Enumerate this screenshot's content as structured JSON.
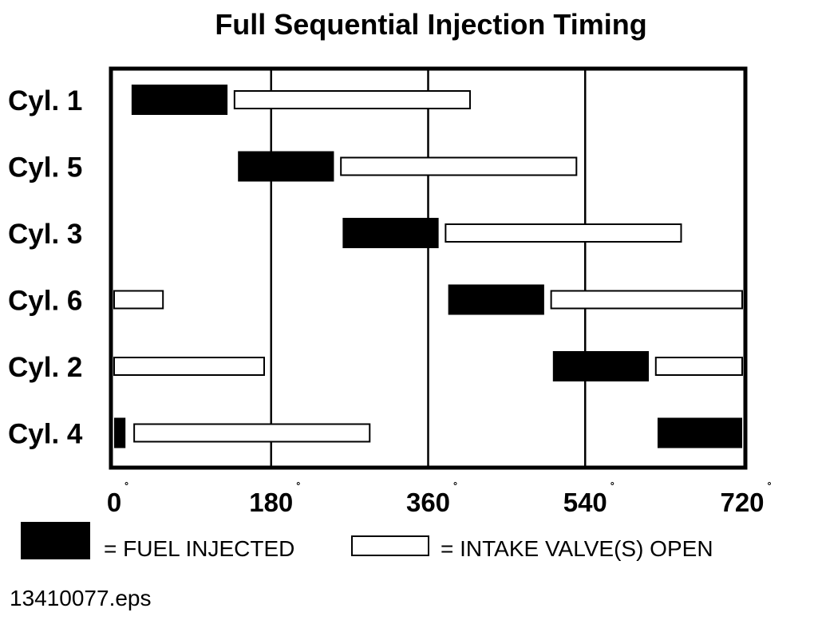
{
  "chart_data": {
    "type": "gantt",
    "title": "Full Sequential Injection Timing",
    "xlabel": "",
    "ylabel": "",
    "xlim": [
      0,
      720
    ],
    "x_ticks": [
      {
        "value": 0,
        "label": "0"
      },
      {
        "value": 180,
        "label": "180"
      },
      {
        "value": 360,
        "label": "360"
      },
      {
        "value": 540,
        "label": "540"
      },
      {
        "value": 720,
        "label": "720"
      }
    ],
    "degree_symbol": "˚",
    "gridlines_at": [
      180,
      360,
      540
    ],
    "cylinders": [
      {
        "label": "Cyl. 1",
        "fuel_injected": [
          [
            20,
            130
          ]
        ],
        "intake_open": [
          [
            138,
            408
          ]
        ]
      },
      {
        "label": "Cyl. 5",
        "fuel_injected": [
          [
            142,
            252
          ]
        ],
        "intake_open": [
          [
            260,
            530
          ]
        ]
      },
      {
        "label": "Cyl. 3",
        "fuel_injected": [
          [
            262,
            372
          ]
        ],
        "intake_open": [
          [
            380,
            650
          ]
        ]
      },
      {
        "label": "Cyl. 6",
        "fuel_injected": [
          [
            383,
            493
          ]
        ],
        "intake_open": [
          [
            0,
            56
          ],
          [
            501,
            720
          ]
        ]
      },
      {
        "label": "Cyl. 2",
        "fuel_injected": [
          [
            503,
            613
          ]
        ],
        "intake_open": [
          [
            0,
            172
          ],
          [
            621,
            720
          ]
        ]
      },
      {
        "label": "Cyl. 4",
        "fuel_injected": [
          [
            0,
            13
          ],
          [
            623,
            720
          ]
        ],
        "intake_open": [
          [
            23,
            293
          ]
        ]
      }
    ],
    "legend": [
      {
        "key": "fuel_injected",
        "label": "= FUEL INJECTED",
        "fill": "#000000"
      },
      {
        "key": "intake_open",
        "label": "= INTAKE VALVE(S) OPEN",
        "fill": "#ffffff"
      }
    ]
  },
  "footer": {
    "filename": "13410077.eps"
  },
  "colors": {
    "ink": "#000000",
    "paper": "#ffffff"
  }
}
